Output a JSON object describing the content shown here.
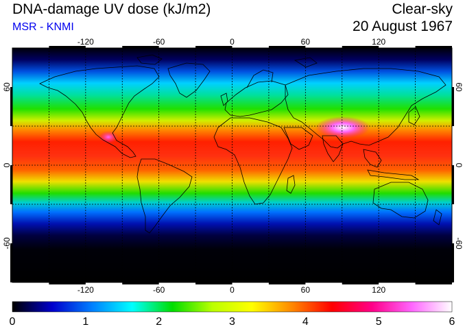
{
  "header": {
    "title": "DNA-damage UV dose (kJ/m2)",
    "source": "MSR - KNMI",
    "condition": "Clear-sky",
    "date": "20 August 1967"
  },
  "map": {
    "projection": "equirectangular",
    "lon_range": [
      -180,
      180
    ],
    "lat_range": [
      -90,
      90
    ],
    "lon_ticks": [
      -120,
      -60,
      0,
      60,
      120
    ],
    "lat_ticks": [
      -60,
      0,
      60
    ],
    "dashed_gridlines_lon": [
      -150,
      -120,
      -90,
      -60,
      -30,
      0,
      30,
      60,
      90,
      120,
      150
    ],
    "dashed_gridlines_lat": [
      -30,
      0,
      30
    ]
  },
  "colorbar": {
    "min": 0,
    "max": 6,
    "tick_labels": [
      "0",
      "1",
      "2",
      "3",
      "4",
      "5",
      "6"
    ],
    "colors": [
      "#000000",
      "#0000cc",
      "#0080ff",
      "#00ffff",
      "#00dd00",
      "#bbff00",
      "#ffff00",
      "#ff8800",
      "#ff0000",
      "#ff0088",
      "#ff66ff",
      "#ffffff"
    ]
  },
  "colors": {
    "source_text": "#0000ee"
  }
}
